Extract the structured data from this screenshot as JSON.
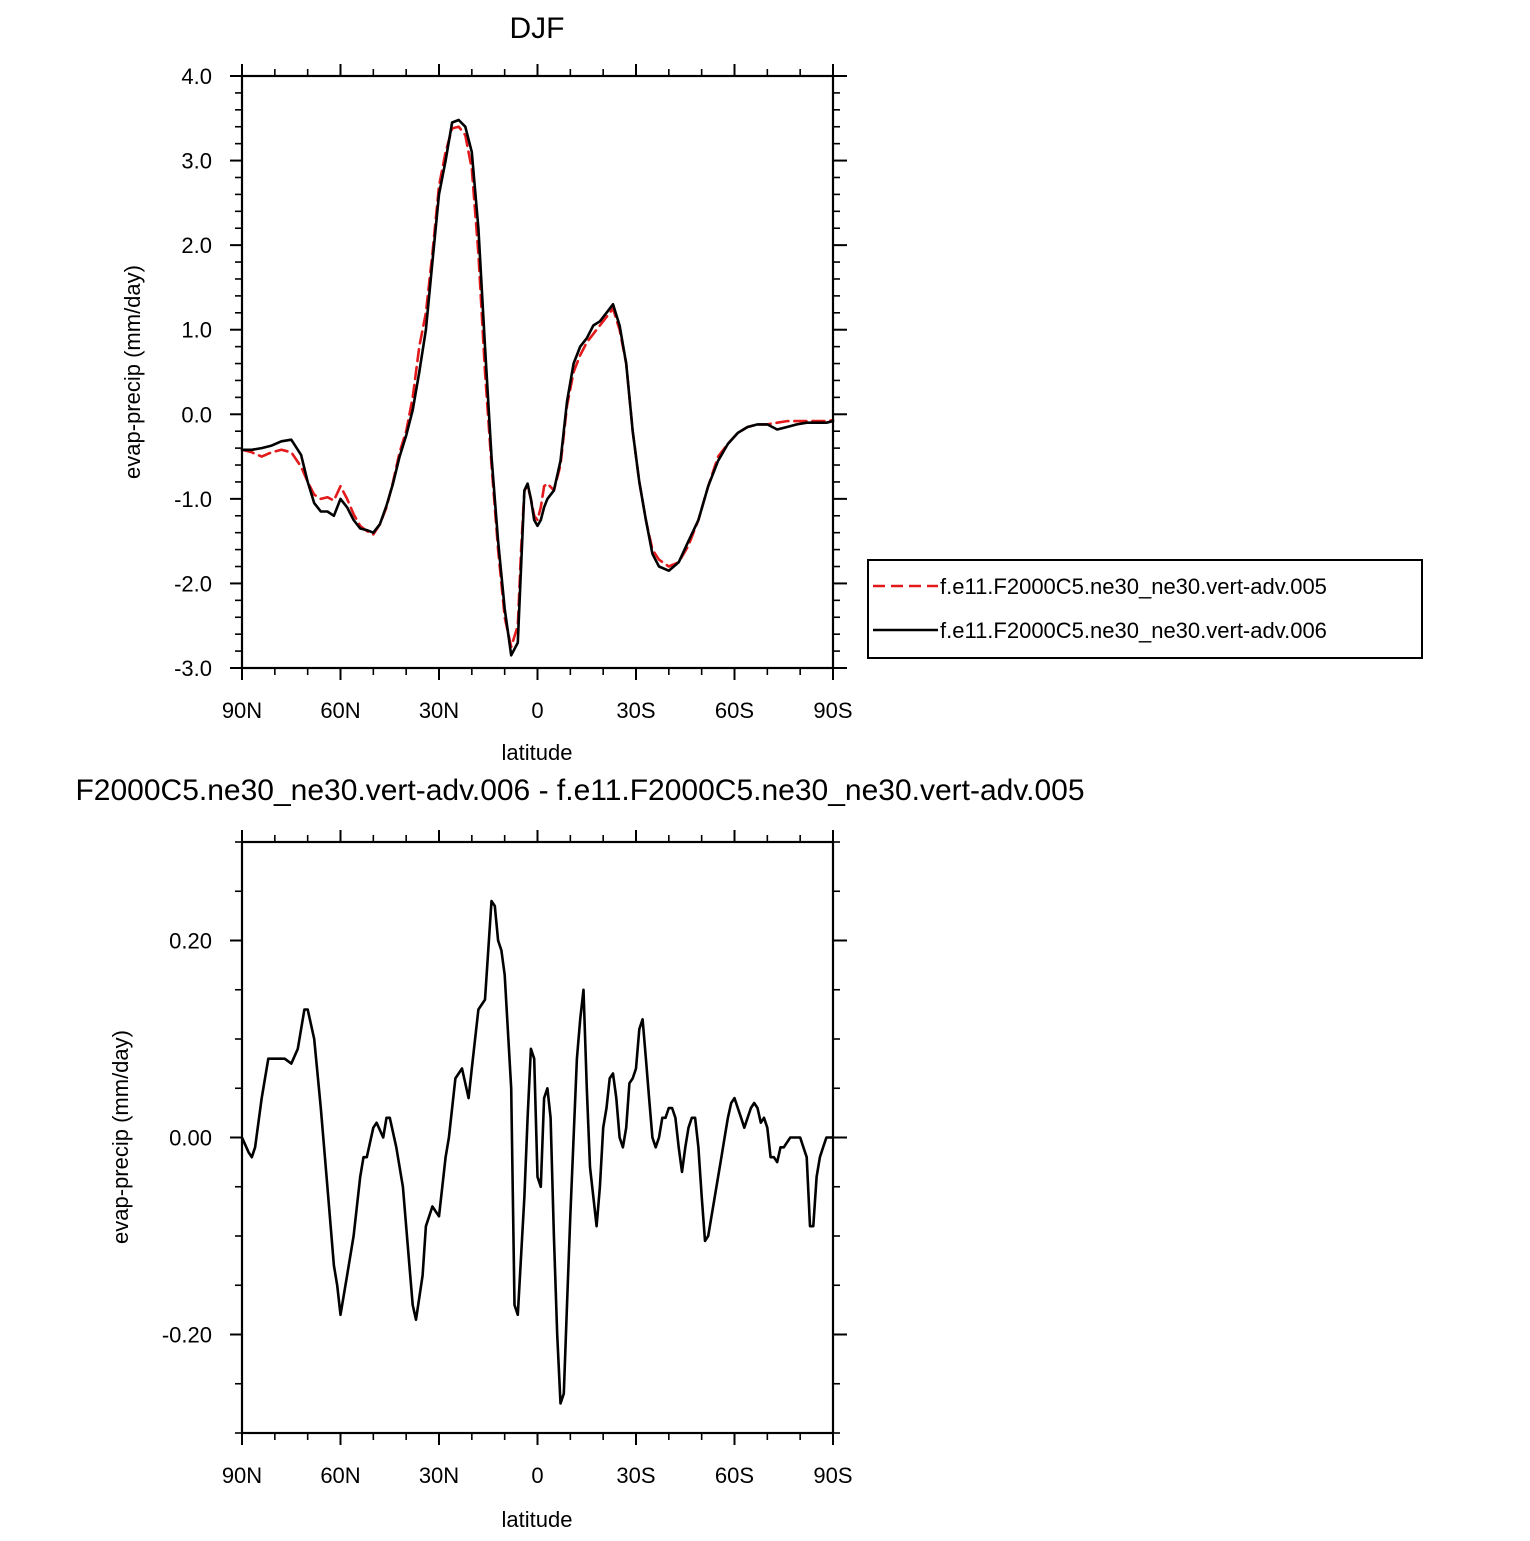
{
  "chart_data": [
    {
      "type": "line",
      "title": "DJF",
      "xlabel": "latitude",
      "ylabel": "evap-precip (mm/day)",
      "x_tick_labels": [
        "90N",
        "60N",
        "30N",
        "0",
        "30S",
        "60S",
        "90S"
      ],
      "xlim": [
        90,
        -90
      ],
      "ylim": [
        -3.0,
        4.0
      ],
      "y_ticks": [
        -3.0,
        -2.0,
        -1.0,
        0.0,
        1.0,
        2.0,
        3.0,
        4.0
      ],
      "y_tick_labels": [
        "-3.0",
        "-2.0",
        "-1.0",
        "0.0",
        "1.0",
        "2.0",
        "3.0",
        "4.0"
      ],
      "grid": false,
      "legend_position": "right",
      "series": [
        {
          "name": "f.e11.F2000C5.ne30_ne30.vert-adv.005",
          "color": "#e31a1c",
          "dash": "dashed",
          "x": [
            90,
            87,
            84,
            81,
            78,
            75,
            72,
            70,
            68,
            66,
            64,
            62,
            60,
            58,
            56,
            54,
            52,
            50,
            48,
            46,
            44,
            42,
            40,
            38,
            36,
            34,
            32,
            30,
            28,
            26,
            24,
            22,
            20,
            18,
            16,
            14,
            12,
            10,
            8,
            6,
            5,
            4,
            3,
            2,
            1,
            0,
            -1,
            -2,
            -3,
            -5,
            -7,
            -9,
            -11,
            -13,
            -15,
            -17,
            -19,
            -21,
            -23,
            -25,
            -27,
            -29,
            -31,
            -33,
            -35,
            -37,
            -40,
            -43,
            -46,
            -49,
            -52,
            -55,
            -58,
            -61,
            -64,
            -67,
            -70,
            -73,
            -76,
            -79,
            -82,
            -85,
            -88,
            -90
          ],
          "y": [
            -0.42,
            -0.45,
            -0.5,
            -0.45,
            -0.42,
            -0.45,
            -0.62,
            -0.8,
            -0.95,
            -1.0,
            -0.98,
            -1.02,
            -0.85,
            -1.0,
            -1.18,
            -1.32,
            -1.38,
            -1.42,
            -1.3,
            -1.1,
            -0.8,
            -0.45,
            -0.2,
            0.2,
            0.8,
            1.2,
            1.9,
            2.7,
            3.1,
            3.38,
            3.4,
            3.3,
            2.9,
            1.9,
            0.5,
            -0.6,
            -1.6,
            -2.4,
            -2.75,
            -2.5,
            -1.6,
            -0.9,
            -0.85,
            -1.0,
            -1.2,
            -1.25,
            -1.1,
            -0.85,
            -0.82,
            -0.9,
            -0.6,
            0.1,
            0.5,
            0.7,
            0.85,
            0.95,
            1.05,
            1.15,
            1.25,
            1.0,
            0.6,
            -0.2,
            -0.8,
            -1.25,
            -1.6,
            -1.72,
            -1.8,
            -1.75,
            -1.55,
            -1.25,
            -0.85,
            -0.5,
            -0.35,
            -0.22,
            -0.15,
            -0.12,
            -0.12,
            -0.1,
            -0.08,
            -0.08,
            -0.08,
            -0.08,
            -0.08,
            -0.07
          ]
        },
        {
          "name": "f.e11.F2000C5.ne30_ne30.vert-adv.006",
          "color": "#000000",
          "dash": "solid",
          "x": [
            90,
            87,
            84,
            81,
            78,
            75,
            72,
            70,
            68,
            66,
            64,
            62,
            60,
            58,
            56,
            54,
            52,
            50,
            48,
            46,
            44,
            42,
            40,
            38,
            36,
            34,
            32,
            30,
            28,
            26,
            24,
            22,
            20,
            18,
            16,
            14,
            12,
            10,
            8,
            6,
            5,
            4,
            3,
            2,
            1,
            0,
            -1,
            -2,
            -3,
            -5,
            -7,
            -9,
            -11,
            -13,
            -15,
            -17,
            -19,
            -21,
            -23,
            -25,
            -27,
            -29,
            -31,
            -33,
            -35,
            -37,
            -40,
            -43,
            -46,
            -49,
            -52,
            -55,
            -58,
            -61,
            -64,
            -67,
            -70,
            -73,
            -76,
            -79,
            -82,
            -85,
            -88,
            -90
          ],
          "y": [
            -0.42,
            -0.42,
            -0.4,
            -0.37,
            -0.32,
            -0.3,
            -0.48,
            -0.8,
            -1.05,
            -1.15,
            -1.15,
            -1.2,
            -1.0,
            -1.1,
            -1.25,
            -1.35,
            -1.37,
            -1.4,
            -1.3,
            -1.08,
            -0.82,
            -0.5,
            -0.25,
            0.05,
            0.5,
            1.0,
            1.8,
            2.6,
            3.0,
            3.45,
            3.48,
            3.4,
            3.1,
            2.2,
            0.8,
            -0.5,
            -1.5,
            -2.3,
            -2.85,
            -2.7,
            -1.8,
            -0.9,
            -0.82,
            -1.0,
            -1.25,
            -1.32,
            -1.25,
            -1.1,
            -1.0,
            -0.9,
            -0.55,
            0.15,
            0.6,
            0.8,
            0.9,
            1.05,
            1.1,
            1.2,
            1.3,
            1.05,
            0.6,
            -0.2,
            -0.8,
            -1.25,
            -1.65,
            -1.8,
            -1.85,
            -1.75,
            -1.5,
            -1.25,
            -0.85,
            -0.55,
            -0.35,
            -0.22,
            -0.15,
            -0.12,
            -0.12,
            -0.18,
            -0.15,
            -0.12,
            -0.1,
            -0.1,
            -0.1,
            -0.08
          ]
        }
      ]
    },
    {
      "type": "line",
      "title": "F2000C5.ne30_ne30.vert-adv.006 - f.e11.F2000C5.ne30_ne30.vert-adv.005",
      "xlabel": "latitude",
      "ylabel": "evap-precip (mm/day)",
      "x_tick_labels": [
        "90N",
        "60N",
        "30N",
        "0",
        "30S",
        "60S",
        "90S"
      ],
      "xlim": [
        90,
        -90
      ],
      "ylim": [
        -0.3,
        0.3
      ],
      "y_ticks": [
        -0.2,
        0.0,
        0.2
      ],
      "y_tick_labels": [
        "-0.20",
        "0.00",
        "0.20"
      ],
      "grid": false,
      "series": [
        {
          "color": "#000000",
          "dash": "solid",
          "x": [
            90,
            88,
            87,
            86,
            84,
            82,
            80,
            78,
            77,
            75,
            73,
            71,
            70,
            68,
            66,
            64,
            62,
            61,
            60,
            58,
            56,
            54,
            53,
            52,
            50,
            49,
            47,
            46,
            45,
            43,
            41,
            39,
            38,
            37,
            35,
            34,
            32,
            30,
            29,
            28,
            27,
            25,
            23,
            21,
            20,
            18,
            16,
            14,
            13,
            12,
            11,
            10,
            8,
            7,
            6,
            5,
            4,
            3,
            2,
            1,
            0,
            -1,
            -2,
            -3,
            -4,
            -5,
            -6,
            -7,
            -8,
            -9,
            -10,
            -11,
            -12,
            -13,
            -14,
            -15,
            -16,
            -17,
            -18,
            -19,
            -20,
            -21,
            -22,
            -23,
            -24,
            -25,
            -26,
            -27,
            -28,
            -29,
            -30,
            -31,
            -32,
            -33,
            -34,
            -35,
            -36,
            -37,
            -38,
            -39,
            -40,
            -41,
            -42,
            -43,
            -44,
            -45,
            -46,
            -47,
            -48,
            -49,
            -50,
            -51,
            -52,
            -53,
            -54,
            -55,
            -56,
            -57,
            -58,
            -59,
            -60,
            -61,
            -62,
            -63,
            -64,
            -65,
            -66,
            -67,
            -68,
            -69,
            -70,
            -71,
            -72,
            -73,
            -74,
            -75,
            -76,
            -77,
            -78,
            -79,
            -80,
            -81,
            -82,
            -83,
            -84,
            -85,
            -86,
            -87,
            -88,
            -89,
            -90
          ],
          "y": [
            0.0,
            -0.015,
            -0.02,
            -0.01,
            0.04,
            0.08,
            0.08,
            0.08,
            0.08,
            0.075,
            0.09,
            0.13,
            0.13,
            0.1,
            0.03,
            -0.05,
            -0.13,
            -0.15,
            -0.18,
            -0.14,
            -0.1,
            -0.04,
            -0.02,
            -0.02,
            0.01,
            0.015,
            0.0,
            0.02,
            0.02,
            -0.01,
            -0.05,
            -0.13,
            -0.17,
            -0.185,
            -0.14,
            -0.09,
            -0.07,
            -0.08,
            -0.05,
            -0.02,
            0.0,
            0.06,
            0.07,
            0.04,
            0.07,
            0.13,
            0.14,
            0.24,
            0.235,
            0.2,
            0.19,
            0.165,
            0.05,
            -0.17,
            -0.18,
            -0.12,
            -0.06,
            0.02,
            0.09,
            0.08,
            -0.04,
            -0.05,
            0.04,
            0.05,
            0.02,
            -0.1,
            -0.2,
            -0.27,
            -0.26,
            -0.17,
            -0.08,
            0.0,
            0.08,
            0.12,
            0.15,
            0.05,
            -0.03,
            -0.06,
            -0.09,
            -0.05,
            0.01,
            0.03,
            0.06,
            0.065,
            0.04,
            0.0,
            -0.01,
            0.01,
            0.055,
            0.06,
            0.07,
            0.11,
            0.12,
            0.08,
            0.04,
            0.0,
            -0.01,
            0.0,
            0.02,
            0.02,
            0.03,
            0.03,
            0.02,
            -0.01,
            -0.035,
            -0.01,
            0.01,
            0.02,
            0.02,
            -0.01,
            -0.06,
            -0.105,
            -0.1,
            -0.08,
            -0.06,
            -0.04,
            -0.02,
            0.0,
            0.02,
            0.035,
            0.04,
            0.03,
            0.02,
            0.01,
            0.02,
            0.03,
            0.035,
            0.03,
            0.015,
            0.02,
            0.01,
            -0.02,
            -0.02,
            -0.025,
            -0.01,
            -0.01,
            -0.005,
            0.0,
            0.0,
            0.0,
            0.0,
            -0.01,
            -0.02,
            -0.09,
            -0.09,
            -0.04,
            -0.02,
            -0.01,
            0.0,
            0.0,
            0.0
          ]
        }
      ]
    }
  ],
  "colors": {
    "background": "#ffffff",
    "axes": "#000000",
    "series_005": "#e31a1c",
    "series_006": "#000000"
  }
}
